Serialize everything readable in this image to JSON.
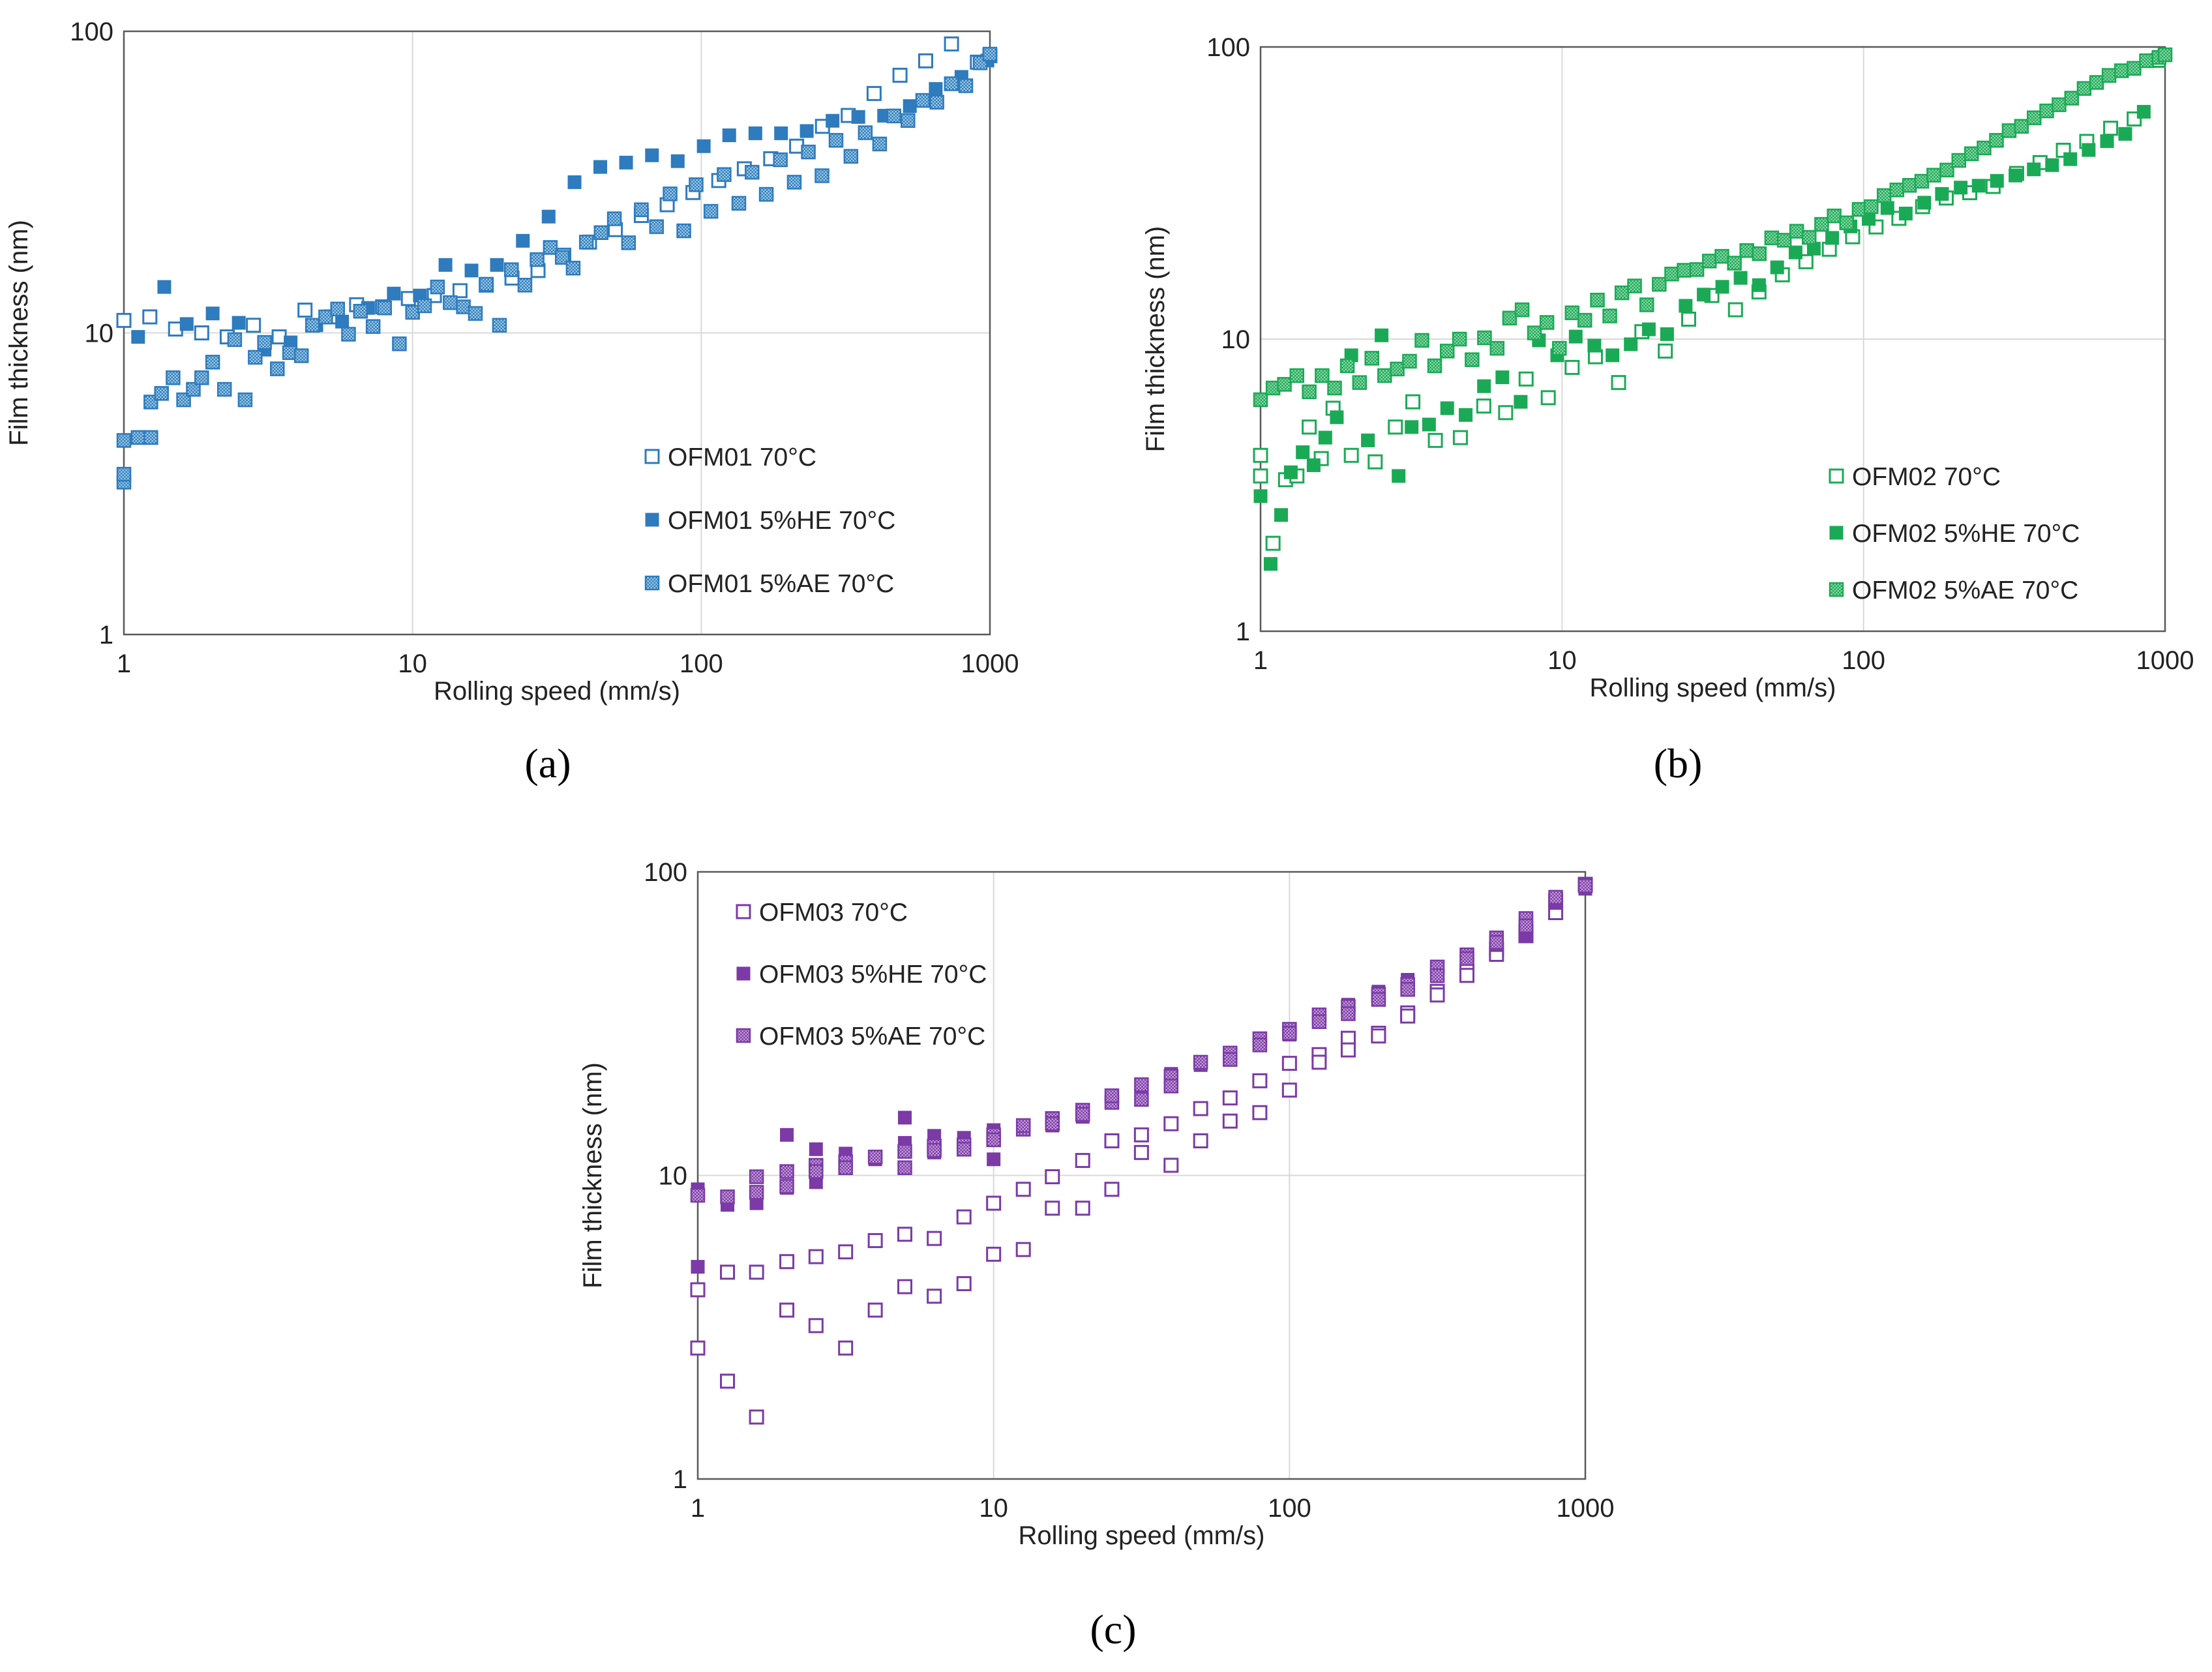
{
  "figure": {
    "captions": [
      "(a)",
      "(b)",
      "(c)"
    ]
  },
  "chart_data": [
    {
      "type": "scatter",
      "panel_label": "a",
      "xlabel": "Rolling speed (mm/s)",
      "ylabel": "Film thickness (nm)",
      "xscale": "log",
      "yscale": "log",
      "xlim": [
        1,
        1000
      ],
      "ylim": [
        1,
        100
      ],
      "xticks": [
        "1",
        "10",
        "100",
        "1000"
      ],
      "yticks": [
        "1",
        "10",
        "100"
      ],
      "grid": true,
      "legend_position": "bottom-right",
      "colors": {
        "main": "#2E7BBE",
        "pattern": "#9FCBE3"
      },
      "series": [
        {
          "name": "OFM01 70°C",
          "marker": "open",
          "x": [
            1,
            1.23,
            1.51,
            1.86,
            2.28,
            2.81,
            3.45,
            4.24,
            5.21,
            6.4,
            7.87,
            9.67,
            11.9,
            14.6,
            18,
            22.1,
            27.2,
            33.4,
            41,
            50.4,
            62,
            76.2,
            93.6,
            115,
            141,
            174,
            214,
            263,
            323,
            397,
            488,
            599,
            736,
            905,
            1000
          ],
          "y": [
            11,
            11.3,
            10.3,
            10,
            9.7,
            10.6,
            9.7,
            11.9,
            11.3,
            12.4,
            12.2,
            13,
            13.3,
            13.8,
            14.4,
            15.2,
            16.1,
            18.1,
            20,
            22,
            24.5,
            26.6,
            29.2,
            32,
            35,
            37.8,
            41.6,
            48.4,
            52.6,
            62.2,
            71.5,
            79.8,
            90.8,
            79,
            83
          ]
        },
        {
          "name": "OFM01 5%HE 70°C",
          "marker": "filled",
          "x": [
            1.12,
            1.38,
            1.65,
            2.03,
            2.5,
            3.07,
            3.78,
            4.64,
            5.7,
            7.01,
            8.61,
            10.6,
            13,
            16,
            19.6,
            24.1,
            29.6,
            36.4,
            44.7,
            54.9,
            67.5,
            82.9,
            102,
            125,
            154,
            189,
            232,
            285,
            350,
            430,
            528,
            649,
            797,
            980
          ],
          "y": [
            9.7,
            14.2,
            10.7,
            11.6,
            10.8,
            8.8,
            9.3,
            10.6,
            10.9,
            12.1,
            13.5,
            13.3,
            16.8,
            16.1,
            16.8,
            20.2,
            24.3,
            31.6,
            35.5,
            36.7,
            38.8,
            37.1,
            41.6,
            45.2,
            45.9,
            45.9,
            46.7,
            50.5,
            52,
            52.5,
            56.5,
            64.4,
            70.6,
            80
          ]
        },
        {
          "name": "OFM01 5%AE 70°C",
          "marker": "patterned",
          "x": [
            1,
            1,
            1,
            1.12,
            1.24,
            1.24,
            1.35,
            1.48,
            1.61,
            1.74,
            1.86,
            2.03,
            2.23,
            2.42,
            2.63,
            2.85,
            3.07,
            3.4,
            3.75,
            4.12,
            4.5,
            5,
            5.5,
            6,
            6.6,
            7.3,
            8,
            9,
            10,
            11,
            12.2,
            13.5,
            15,
            16.5,
            18,
            20,
            22,
            24.5,
            27,
            30,
            33,
            36,
            40,
            45,
            50,
            56,
            62,
            70,
            78,
            87,
            96,
            108,
            120,
            135,
            150,
            168,
            188,
            210,
            235,
            262,
            293,
            330,
            370,
            415,
            465,
            520,
            585,
            655,
            735,
            825,
            925,
            1000
          ],
          "y": [
            3.2,
            3.4,
            4.4,
            4.5,
            4.5,
            5.9,
            6.3,
            7.1,
            6,
            6.5,
            7.1,
            8,
            6.5,
            9.5,
            6,
            8.3,
            9.3,
            7.6,
            8.6,
            8.4,
            10.6,
            11.3,
            12,
            9.9,
            11.8,
            10.5,
            12.1,
            9.2,
            11.7,
            12.3,
            14.2,
            12.6,
            12.2,
            11.6,
            14.5,
            10.6,
            16.2,
            14.4,
            17.5,
            19.2,
            17.8,
            16.4,
            20,
            21.5,
            23.9,
            19.9,
            25.6,
            22.5,
            28.9,
            21.8,
            31,
            25.3,
            33.5,
            26.9,
            34.1,
            28.8,
            37.5,
            31.6,
            39.8,
            33.2,
            43.5,
            38.5,
            46.1,
            42.3,
            52.4,
            50.6,
            59,
            58.2,
            67,
            66,
            78.6,
            84
          ]
        }
      ]
    },
    {
      "type": "scatter",
      "panel_label": "b",
      "xlabel": "Rolling speed (mm/s)",
      "ylabel": "Film thickness (nm)",
      "xscale": "log",
      "yscale": "log",
      "xlim": [
        1,
        1000
      ],
      "ylim": [
        1,
        100
      ],
      "xticks": [
        "1",
        "10",
        "100",
        "1000"
      ],
      "yticks": [
        "1",
        "10",
        "100"
      ],
      "grid": true,
      "legend_position": "bottom-right",
      "colors": {
        "main": "#1AAA55",
        "pattern": "#8FD6AB"
      },
      "series": [
        {
          "name": "OFM02 70°C",
          "marker": "open",
          "x": [
            1,
            1,
            1.1,
            1.21,
            1.32,
            1.45,
            1.59,
            1.74,
            2,
            2.4,
            2.8,
            3.2,
            3.8,
            4.6,
            5.5,
            6.5,
            7.6,
            9,
            10.8,
            12.9,
            15.4,
            18.4,
            22,
            26.3,
            31.4,
            37.6,
            45,
            53.8,
            64.4,
            77,
            92,
            110,
            131,
            157,
            188,
            225,
            269,
            322,
            385,
            460,
            550,
            660,
            790,
            950
          ],
          "y": [
            4,
            3.4,
            2,
            3.3,
            3.4,
            5,
            3.9,
            5.8,
            4,
            3.8,
            5,
            6.1,
            4.5,
            4.6,
            5.9,
            5.6,
            7.3,
            6.3,
            8,
            8.7,
            7.1,
            10.6,
            9.1,
            11.7,
            14.1,
            12.6,
            14.5,
            16.6,
            18.4,
            20.3,
            22.4,
            24.2,
            25.9,
            28.4,
            30.4,
            31.7,
            33.3,
            36.9,
            40.2,
            44.3,
            47.5,
            52.7,
            56.7,
            90
          ]
        },
        {
          "name": "OFM02 5%HE 70°C",
          "marker": "filled",
          "x": [
            1,
            1.08,
            1.17,
            1.26,
            1.38,
            1.5,
            1.64,
            1.79,
            2,
            2.27,
            2.52,
            2.87,
            3.17,
            3.62,
            4.16,
            4.79,
            5.51,
            6.34,
            7.29,
            8.38,
            9.64,
            11.1,
            12.8,
            14.7,
            16.9,
            19.4,
            22.3,
            25.7,
            29.5,
            34,
            39.1,
            45,
            51.7,
            59.5,
            68.4,
            78.7,
            90.5,
            104,
            120,
            138,
            159,
            182,
            210,
            241,
            277,
            319,
            367,
            422,
            485,
            558,
            642,
            738,
            850
          ],
          "y": [
            2.9,
            1.7,
            2.5,
            3.5,
            4.1,
            3.7,
            4.6,
            5.4,
            8.8,
            4.5,
            10.3,
            3.4,
            5,
            5.1,
            5.8,
            5.5,
            6.9,
            7.4,
            6.1,
            9.9,
            8.8,
            10.2,
            9.5,
            8.8,
            9.6,
            10.8,
            10.4,
            13,
            14.2,
            15.1,
            16.2,
            15.3,
            17.6,
            19.8,
            20.4,
            22.2,
            24.3,
            25.8,
            28.1,
            26.9,
            29.3,
            31.4,
            33,
            33.5,
            34.8,
            36.3,
            38.1,
            39.4,
            41.3,
            44.4,
            47.6,
            50.4,
            60
          ]
        },
        {
          "name": "OFM02 5%AE 70°C",
          "marker": "patterned",
          "x": [
            1,
            1.1,
            1.2,
            1.32,
            1.45,
            1.6,
            1.76,
            1.94,
            2.13,
            2.34,
            2.58,
            2.84,
            3.12,
            3.43,
            3.78,
            4.16,
            4.57,
            5.03,
            5.53,
            6.09,
            6.7,
            7.37,
            8.1,
            8.91,
            9.8,
            10.8,
            11.9,
            13.1,
            14.4,
            15.8,
            17.4,
            19.1,
            21,
            23.1,
            25.4,
            28,
            30.8,
            33.9,
            37.3,
            41,
            45.1,
            49.6,
            54.6,
            60,
            66,
            72.6,
            79.9,
            87.9,
            96.7,
            106,
            117,
            129,
            142,
            156,
            171,
            189,
            207,
            228,
            251,
            276,
            304,
            334,
            368,
            405,
            445,
            490,
            539,
            593,
            652,
            717,
            789,
            868,
            955,
            1000
          ],
          "y": [
            6.2,
            6.8,
            7,
            7.5,
            6.6,
            7.5,
            6.8,
            8.1,
            7.1,
            8.6,
            7.5,
            7.9,
            8.4,
            9.9,
            8.1,
            9.1,
            10,
            8.5,
            10.1,
            9.3,
            11.8,
            12.6,
            10.5,
            11.4,
            9.3,
            12.3,
            11.6,
            13.6,
            12,
            14.4,
            15.2,
            13.1,
            15.4,
            16.7,
            17.2,
            17.3,
            18.5,
            19.2,
            18.2,
            20.1,
            19.6,
            22.2,
            21.8,
            23.4,
            22.3,
            24.7,
            26.4,
            25,
            27.8,
            28.4,
            31,
            32.4,
            33.6,
            34.7,
            36.4,
            37.9,
            40.9,
            43.1,
            45.1,
            47.9,
            51.7,
            53.5,
            57.2,
            60.4,
            63.4,
            66.8,
            72.1,
            75.6,
            79.9,
            82.9,
            84.5,
            89.7,
            92.1,
            94
          ]
        }
      ]
    },
    {
      "type": "scatter",
      "panel_label": "c",
      "xlabel": "Rolling speed (mm/s)",
      "ylabel": "Film thickness (nm)",
      "xscale": "log",
      "yscale": "log",
      "xlim": [
        1,
        1000
      ],
      "ylim": [
        1,
        100
      ],
      "xticks": [
        "1",
        "10",
        "100",
        "1000"
      ],
      "yticks": [
        "1",
        "10",
        "100"
      ],
      "grid": true,
      "legend_position": "top-left",
      "colors": {
        "main": "#7B3AA6",
        "pattern": "#C3A0D8"
      },
      "series": [
        {
          "name": "OFM03 70°C",
          "marker": "open",
          "x": [
            1,
            1,
            1.26,
            1.26,
            1.58,
            1.58,
            2,
            2,
            2.51,
            2.51,
            3.16,
            3.16,
            3.98,
            3.98,
            5.01,
            5.01,
            6.3,
            6.3,
            7.94,
            7.94,
            10,
            10,
            12.6,
            12.6,
            15.8,
            15.8,
            20,
            20,
            25.1,
            25.1,
            31.6,
            31.6,
            39.8,
            39.8,
            50.1,
            50.1,
            63,
            63,
            79.4,
            79.4,
            100,
            100,
            126,
            126,
            158,
            158,
            200,
            200,
            251,
            251,
            316,
            316,
            398,
            398,
            501,
            501,
            630,
            630,
            794,
            794,
            1000
          ],
          "y": [
            4.2,
            2.7,
            4.8,
            2.1,
            4.8,
            1.6,
            5.2,
            3.6,
            5.4,
            3.2,
            5.6,
            2.7,
            6.1,
            3.6,
            6.4,
            4.3,
            6.2,
            4,
            7.3,
            4.4,
            8.1,
            5.5,
            9,
            5.7,
            9.9,
            7.8,
            11.2,
            7.8,
            13,
            9,
            13.6,
            11.9,
            14.8,
            10.8,
            16.6,
            13,
            18,
            15.1,
            20.5,
            16.1,
            23.4,
            19.1,
            25,
            23.6,
            28.3,
            25.9,
            29.4,
            28.8,
            34.3,
            33.5,
            40.4,
            39.3,
            47.2,
            45.6,
            55.6,
            53.5,
            63.6,
            61.6,
            73.4,
            80.3,
            91
          ]
        },
        {
          "name": "OFM03 5%HE 70°C",
          "marker": "filled",
          "x": [
            1,
            1,
            1.26,
            1.58,
            2,
            2,
            2.51,
            2.51,
            3.16,
            3.98,
            5.01,
            5.01,
            6.3,
            6.3,
            7.94,
            10,
            10,
            12.6,
            15.8,
            20,
            25.1,
            31.6,
            39.8,
            50.1,
            63,
            79.4,
            100,
            126,
            158,
            200,
            251,
            316,
            398,
            501,
            630,
            794,
            1000
          ],
          "y": [
            9,
            5,
            8,
            8.1,
            13.6,
            9.1,
            12.2,
            9.5,
            11.8,
            11.3,
            15.5,
            12.8,
            13.5,
            11.9,
            13.3,
            14.1,
            11.3,
            14.3,
            14.6,
            15.6,
            17.6,
            19.8,
            21.6,
            23.1,
            25.1,
            27.3,
            29.1,
            33.4,
            36.5,
            40.3,
            44.1,
            47.2,
            52.3,
            57.4,
            61.5,
            79,
            88
          ]
        },
        {
          "name": "OFM03 5%AE 70°C",
          "marker": "patterned",
          "x": [
            1,
            1.26,
            1.58,
            1.58,
            2,
            2,
            2.51,
            2.51,
            3.16,
            3.16,
            3.98,
            5.01,
            5.01,
            6.3,
            6.3,
            7.94,
            7.94,
            10,
            10,
            12.6,
            12.6,
            15.8,
            15.8,
            20,
            20,
            25.1,
            25.1,
            31.6,
            31.6,
            39.8,
            39.8,
            50.1,
            63,
            63,
            79.4,
            79.4,
            100,
            100,
            126,
            126,
            158,
            158,
            200,
            200,
            251,
            251,
            316,
            316,
            398,
            398,
            501,
            501,
            630,
            630,
            794,
            1000
          ],
          "y": [
            8.6,
            8.5,
            9.9,
            8.8,
            10.3,
            9.2,
            10.8,
            10.3,
            11.1,
            10.6,
            11.5,
            12,
            10.6,
            12.5,
            12.1,
            12.6,
            12.2,
            13.6,
            13.1,
            14.2,
            14.6,
            15.4,
            14.8,
            16.4,
            15.9,
            17.4,
            18.3,
            19.9,
            17.8,
            21.2,
            19.7,
            23.6,
            25.3,
            24.1,
            28.2,
            26.9,
            30.3,
            29.4,
            33.8,
            32.1,
            36,
            34.1,
            39.5,
            38,
            42.6,
            41,
            48.6,
            45.5,
            53.3,
            51.8,
            60.6,
            58.6,
            70.2,
            66.4,
            82.5,
            90
          ]
        }
      ]
    }
  ]
}
